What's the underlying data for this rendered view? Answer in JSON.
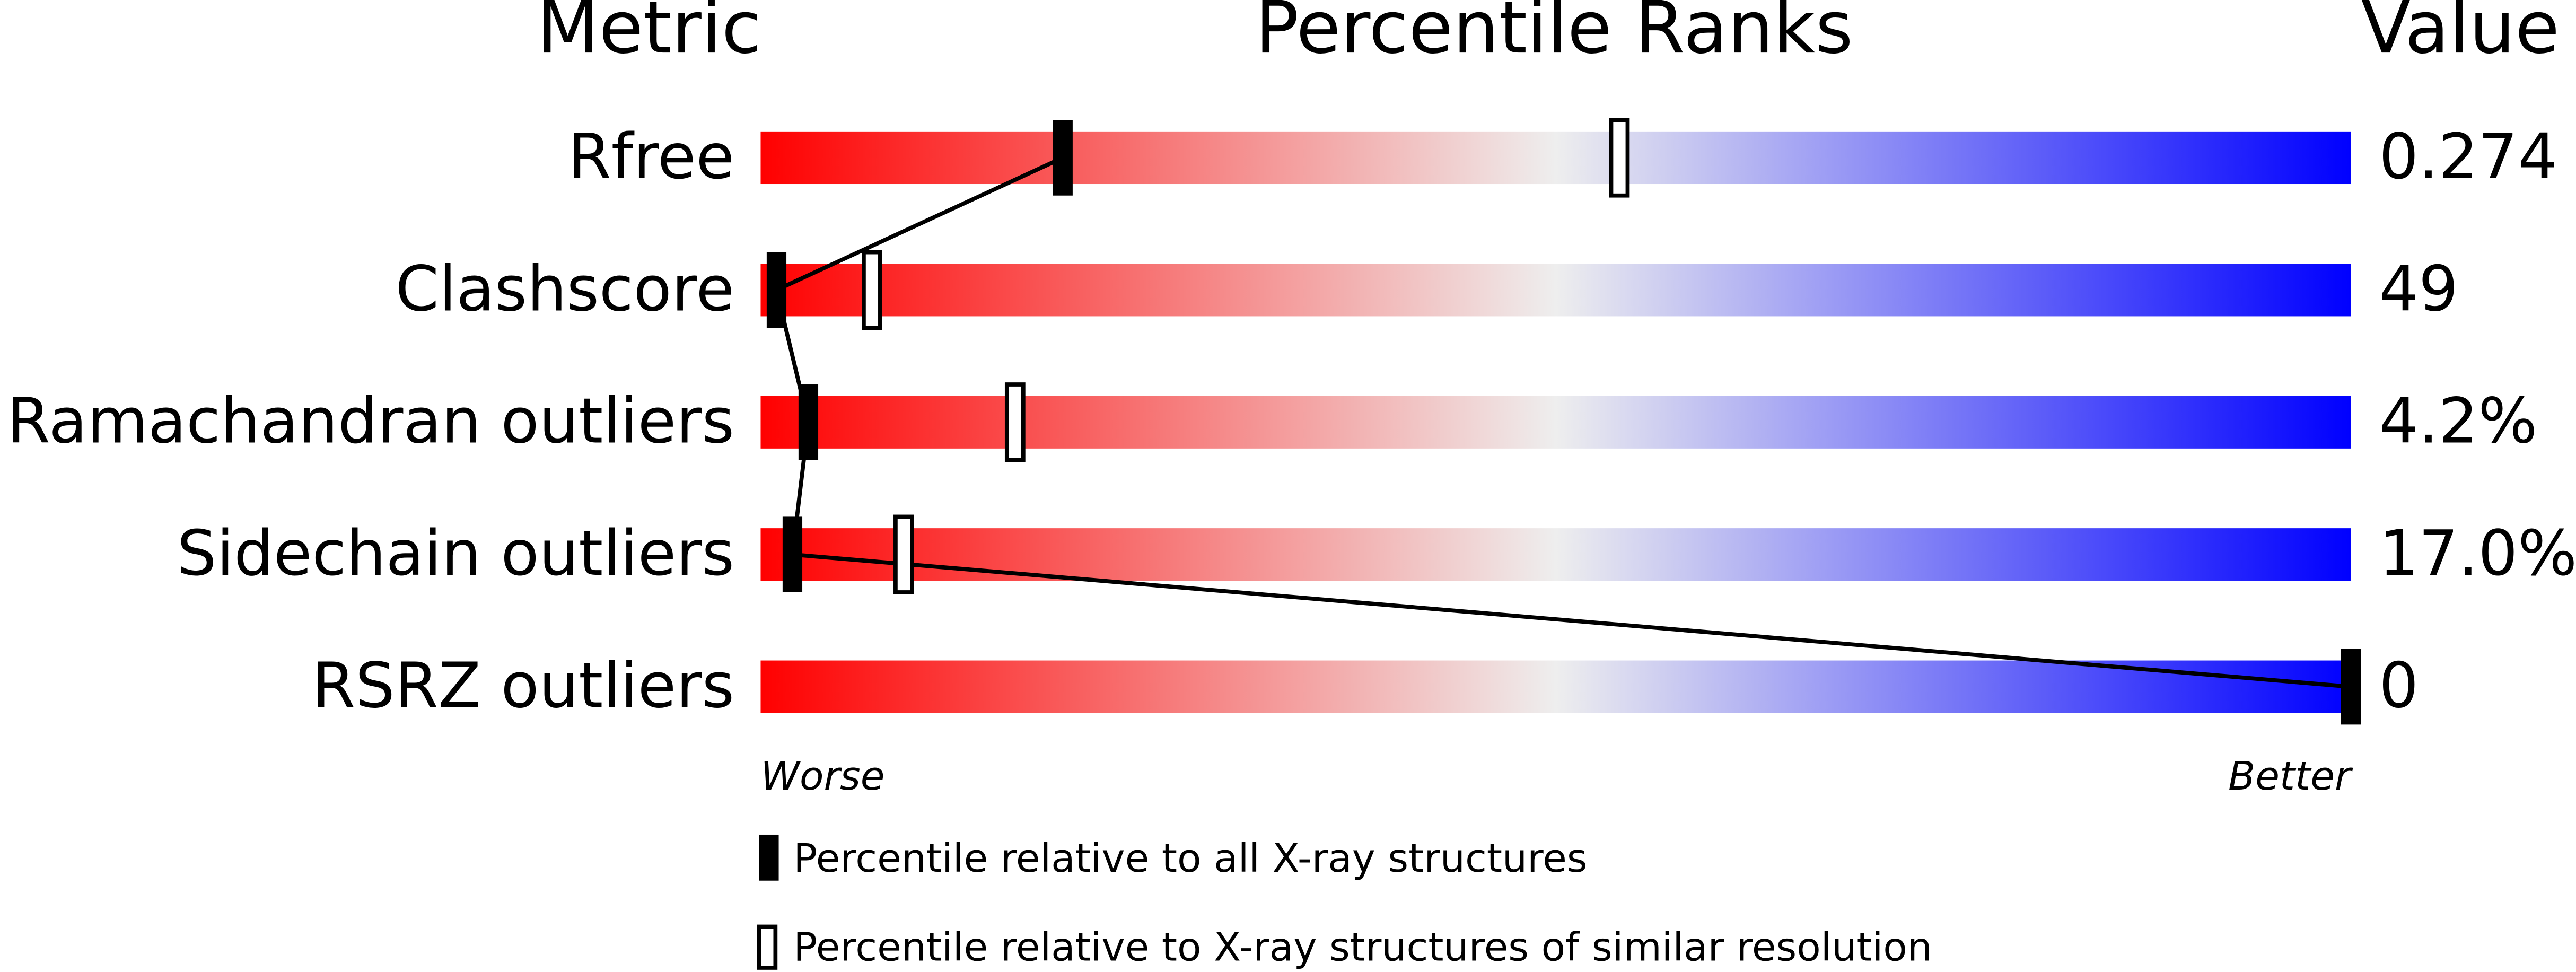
{
  "chart_data": {
    "type": "percentile",
    "column_headers": [
      "Metric",
      "Percentile Ranks",
      "Value"
    ],
    "categories": [
      "Rfree",
      "Clashscore",
      "Ramachandran outliers",
      "Sidechain outliers",
      "RSRZ outliers"
    ],
    "series": [
      {
        "name": "Percentile relative to all X-ray structures",
        "color": "#000000",
        "values": [
          19,
          1,
          3,
          2,
          100
        ]
      },
      {
        "name": "Percentile relative to X-ray structures of similar resolution",
        "color": "#000000",
        "values": [
          54,
          7,
          16,
          9,
          null
        ]
      }
    ],
    "values": [
      0.274,
      49,
      4.2,
      17.0,
      0
    ],
    "value_labels": [
      "0.274",
      "49",
      "4.2%",
      "17.0%",
      "0"
    ],
    "xlim": [
      0,
      100
    ],
    "xlabels": [
      "Worse",
      "Better"
    ],
    "gradient": [
      "#ff0000",
      "#eeeeee",
      "#0000ff"
    ]
  }
}
